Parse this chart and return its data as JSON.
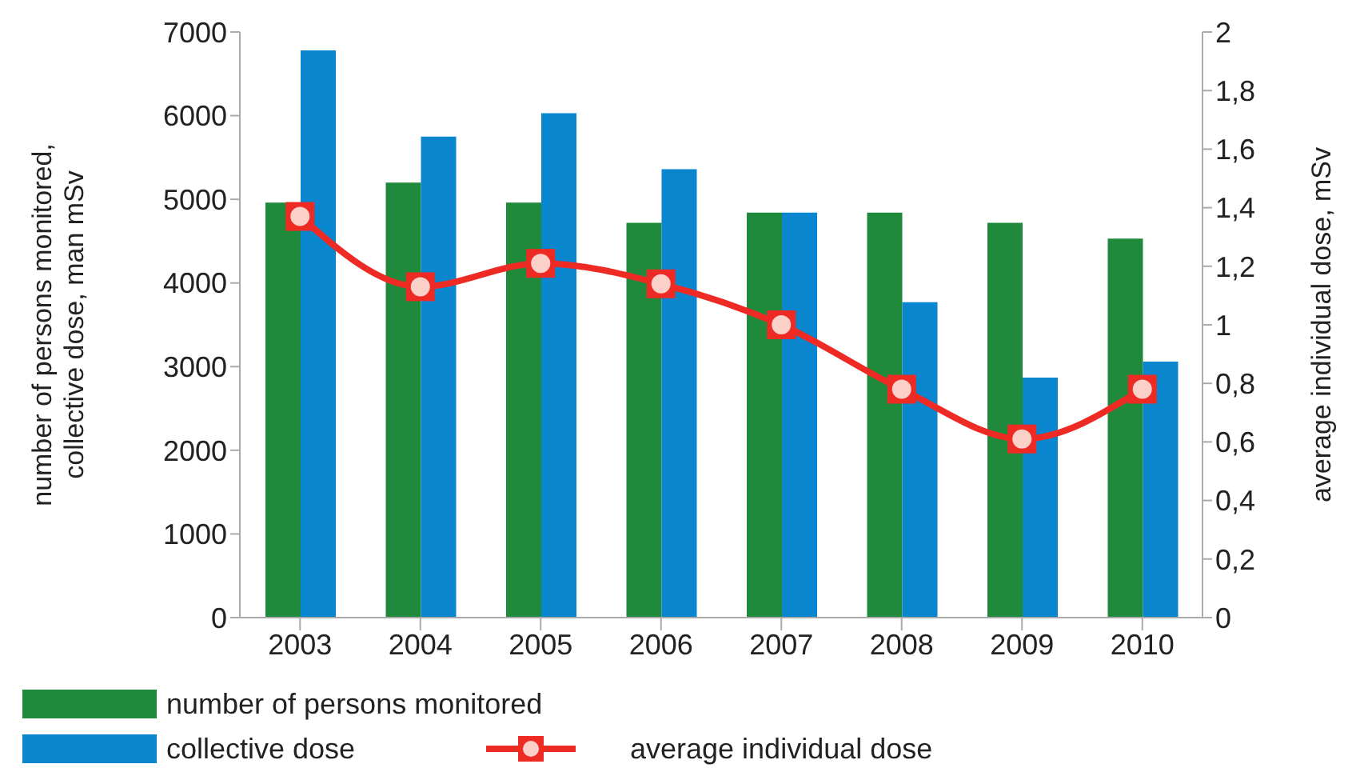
{
  "chart_data": {
    "type": "bar",
    "categories": [
      "2003",
      "2004",
      "2005",
      "2006",
      "2007",
      "2008",
      "2009",
      "2010"
    ],
    "ylabel": "number of persons monitored, collective dose, man mSv",
    "y2label": "average individual dose, mSv",
    "ylim": [
      0,
      7000
    ],
    "yticks": [
      0,
      1000,
      2000,
      3000,
      4000,
      5000,
      6000,
      7000
    ],
    "y2lim": [
      0,
      2
    ],
    "y2ticks": [
      {
        "value": 0,
        "label": "0"
      },
      {
        "value": 0.2,
        "label": "0,2"
      },
      {
        "value": 0.4,
        "label": "0,4"
      },
      {
        "value": 0.6,
        "label": "0,6"
      },
      {
        "value": 0.8,
        "label": "0,8"
      },
      {
        "value": 1,
        "label": "1"
      },
      {
        "value": 1.2,
        "label": "1,2"
      },
      {
        "value": 1.4,
        "label": "1,4"
      },
      {
        "value": 1.6,
        "label": "1,6"
      },
      {
        "value": 1.8,
        "label": "1,8"
      },
      {
        "value": 2,
        "label": "2"
      }
    ],
    "series": [
      {
        "name": "number of persons monitored",
        "color": "#1f8a3c",
        "values": [
          4960,
          5200,
          4960,
          4720,
          4840,
          4840,
          4720,
          4530
        ]
      },
      {
        "name": "collective dose",
        "color": "#0a86cf",
        "values": [
          6780,
          5750,
          6030,
          5360,
          4840,
          3770,
          2870,
          3060
        ]
      },
      {
        "name": "average individual dose",
        "type": "line",
        "axis": "y2",
        "color": "#ee2a24",
        "marker": "square",
        "values": [
          1.37,
          1.13,
          1.21,
          1.14,
          1.0,
          0.78,
          0.61,
          0.78
        ]
      }
    ],
    "grid": false,
    "legend": "bottom"
  }
}
